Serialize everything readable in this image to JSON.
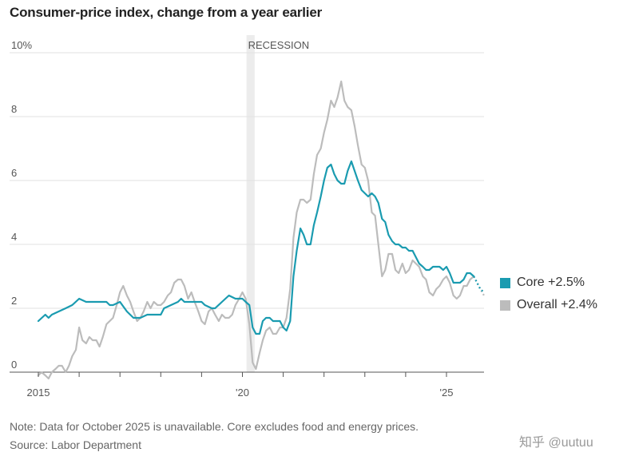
{
  "title": "Consumer-price index, change from a year earlier",
  "note": "Note: Data for October 2025 is unavailable. Core excludes food and energy prices.",
  "source": "Source: Labor Department",
  "watermark": "知乎 @uutuu",
  "chart_data": {
    "type": "line",
    "title": "Consumer-price index, change from a year earlier",
    "xlabel": "",
    "ylabel": "",
    "ylim": [
      0,
      10
    ],
    "xlim": [
      2015.0,
      2025.92
    ],
    "y_ticks": [
      {
        "value": 10,
        "label": "10%"
      },
      {
        "value": 8,
        "label": "8"
      },
      {
        "value": 6,
        "label": "6"
      },
      {
        "value": 4,
        "label": "4"
      },
      {
        "value": 2,
        "label": "2"
      },
      {
        "value": 0,
        "label": "0"
      }
    ],
    "x_ticks": [
      {
        "value": 2015,
        "label": "2015"
      },
      {
        "value": 2020,
        "label": "'20"
      },
      {
        "value": 2025,
        "label": "'25"
      }
    ],
    "grid": true,
    "recession": {
      "label": "RECESSION",
      "start": 2020.1,
      "end": 2020.3
    },
    "legend_position": "right",
    "colors": {
      "core": "#1a9bb0",
      "overall": "#bcbcbc",
      "recession": "#ececec",
      "grid": "#e2e2e2"
    },
    "series": [
      {
        "name": "Core",
        "legend_label": "Core +2.5%",
        "color": "#1a9bb0",
        "x": [
          2015.0,
          2015.17,
          2015.25,
          2015.33,
          2015.5,
          2015.67,
          2015.83,
          2016.0,
          2016.17,
          2016.25,
          2016.33,
          2016.5,
          2016.67,
          2016.75,
          2016.83,
          2017.0,
          2017.17,
          2017.33,
          2017.42,
          2017.5,
          2017.67,
          2017.83,
          2018.0,
          2018.08,
          2018.25,
          2018.42,
          2018.5,
          2018.58,
          2018.75,
          2018.83,
          2019.0,
          2019.08,
          2019.25,
          2019.33,
          2019.5,
          2019.67,
          2019.83,
          2020.0,
          2020.08,
          2020.17,
          2020.25,
          2020.33,
          2020.42,
          2020.5,
          2020.58,
          2020.67,
          2020.75,
          2020.83,
          2020.92,
          2021.0,
          2021.08,
          2021.17,
          2021.25,
          2021.33,
          2021.42,
          2021.5,
          2021.58,
          2021.67,
          2021.75,
          2021.83,
          2021.92,
          2022.0,
          2022.08,
          2022.17,
          2022.25,
          2022.33,
          2022.42,
          2022.5,
          2022.58,
          2022.67,
          2022.75,
          2022.83,
          2022.92,
          2023.0,
          2023.08,
          2023.17,
          2023.25,
          2023.33,
          2023.42,
          2023.5,
          2023.58,
          2023.67,
          2023.75,
          2023.83,
          2023.92,
          2024.0,
          2024.08,
          2024.17,
          2024.25,
          2024.33,
          2024.42,
          2024.5,
          2024.58,
          2024.67,
          2024.75,
          2024.83,
          2024.92,
          2025.0,
          2025.08,
          2025.17,
          2025.25,
          2025.33,
          2025.42,
          2025.5,
          2025.58,
          2025.67
        ],
        "y": [
          1.6,
          1.8,
          1.7,
          1.8,
          1.9,
          2.0,
          2.1,
          2.3,
          2.2,
          2.2,
          2.2,
          2.2,
          2.2,
          2.1,
          2.1,
          2.2,
          1.9,
          1.7,
          1.7,
          1.7,
          1.8,
          1.8,
          1.8,
          2.0,
          2.1,
          2.2,
          2.3,
          2.2,
          2.2,
          2.2,
          2.2,
          2.1,
          2.0,
          2.0,
          2.2,
          2.4,
          2.3,
          2.3,
          2.2,
          2.1,
          1.4,
          1.2,
          1.2,
          1.6,
          1.7,
          1.7,
          1.6,
          1.6,
          1.6,
          1.4,
          1.3,
          1.6,
          3.0,
          3.8,
          4.5,
          4.3,
          4.0,
          4.0,
          4.6,
          5.0,
          5.5,
          6.0,
          6.4,
          6.5,
          6.2,
          6.0,
          5.9,
          5.9,
          6.3,
          6.6,
          6.3,
          6.0,
          5.7,
          5.6,
          5.5,
          5.6,
          5.5,
          5.3,
          4.8,
          4.7,
          4.3,
          4.1,
          4.0,
          4.0,
          3.9,
          3.9,
          3.8,
          3.8,
          3.6,
          3.4,
          3.3,
          3.2,
          3.2,
          3.3,
          3.3,
          3.3,
          3.2,
          3.3,
          3.1,
          2.8,
          2.8,
          2.8,
          2.9,
          3.1,
          3.1,
          3.0
        ]
      },
      {
        "name": "Overall",
        "legend_label": "Overall +2.4%",
        "color": "#bcbcbc",
        "x": [
          2015.0,
          2015.08,
          2015.17,
          2015.25,
          2015.33,
          2015.42,
          2015.5,
          2015.58,
          2015.67,
          2015.75,
          2015.83,
          2015.92,
          2016.0,
          2016.08,
          2016.17,
          2016.25,
          2016.33,
          2016.42,
          2016.5,
          2016.58,
          2016.67,
          2016.75,
          2016.83,
          2016.92,
          2017.0,
          2017.08,
          2017.17,
          2017.25,
          2017.33,
          2017.42,
          2017.5,
          2017.58,
          2017.67,
          2017.75,
          2017.83,
          2017.92,
          2018.0,
          2018.08,
          2018.17,
          2018.25,
          2018.33,
          2018.42,
          2018.5,
          2018.58,
          2018.67,
          2018.75,
          2018.83,
          2018.92,
          2019.0,
          2019.08,
          2019.17,
          2019.25,
          2019.33,
          2019.42,
          2019.5,
          2019.58,
          2019.67,
          2019.75,
          2019.83,
          2019.92,
          2020.0,
          2020.08,
          2020.17,
          2020.25,
          2020.33,
          2020.42,
          2020.5,
          2020.58,
          2020.67,
          2020.75,
          2020.83,
          2020.92,
          2021.0,
          2021.08,
          2021.17,
          2021.25,
          2021.33,
          2021.42,
          2021.5,
          2021.58,
          2021.67,
          2021.75,
          2021.83,
          2021.92,
          2022.0,
          2022.08,
          2022.17,
          2022.25,
          2022.33,
          2022.42,
          2022.5,
          2022.58,
          2022.67,
          2022.75,
          2022.83,
          2022.92,
          2023.0,
          2023.08,
          2023.17,
          2023.25,
          2023.33,
          2023.42,
          2023.5,
          2023.58,
          2023.67,
          2023.75,
          2023.83,
          2023.92,
          2024.0,
          2024.08,
          2024.17,
          2024.25,
          2024.33,
          2024.42,
          2024.5,
          2024.58,
          2024.67,
          2024.75,
          2024.83,
          2024.92,
          2025.0,
          2025.08,
          2025.17,
          2025.25,
          2025.33,
          2025.42,
          2025.5,
          2025.58,
          2025.67
        ],
        "y": [
          -0.1,
          0.0,
          -0.1,
          -0.2,
          0.0,
          0.1,
          0.2,
          0.2,
          0.0,
          0.2,
          0.5,
          0.7,
          1.4,
          1.0,
          0.9,
          1.1,
          1.0,
          1.0,
          0.8,
          1.1,
          1.5,
          1.6,
          1.7,
          2.1,
          2.5,
          2.7,
          2.4,
          2.2,
          1.9,
          1.6,
          1.7,
          1.9,
          2.2,
          2.0,
          2.2,
          2.1,
          2.1,
          2.2,
          2.4,
          2.5,
          2.8,
          2.9,
          2.9,
          2.7,
          2.3,
          2.5,
          2.2,
          1.9,
          1.6,
          1.5,
          1.9,
          2.0,
          1.8,
          1.6,
          1.8,
          1.7,
          1.7,
          1.8,
          2.1,
          2.3,
          2.5,
          2.3,
          1.5,
          0.3,
          0.1,
          0.6,
          1.0,
          1.3,
          1.4,
          1.2,
          1.2,
          1.4,
          1.4,
          1.7,
          2.6,
          4.2,
          5.0,
          5.4,
          5.4,
          5.3,
          5.4,
          6.2,
          6.8,
          7.0,
          7.5,
          7.9,
          8.5,
          8.3,
          8.6,
          9.1,
          8.5,
          8.3,
          8.2,
          7.7,
          7.1,
          6.5,
          6.4,
          6.0,
          5.0,
          4.9,
          4.0,
          3.0,
          3.2,
          3.7,
          3.7,
          3.2,
          3.1,
          3.4,
          3.1,
          3.2,
          3.5,
          3.4,
          3.3,
          3.0,
          2.9,
          2.5,
          2.4,
          2.6,
          2.7,
          2.9,
          3.0,
          2.8,
          2.4,
          2.3,
          2.4,
          2.7,
          2.7,
          2.9,
          3.0
        ]
      }
    ],
    "projection": {
      "x": [
        2025.67,
        2025.75,
        2025.83,
        2025.92
      ],
      "core_y": [
        3.0,
        2.8,
        2.6,
        2.5
      ],
      "overall_y": [
        3.0,
        2.8,
        2.6,
        2.4
      ]
    }
  }
}
